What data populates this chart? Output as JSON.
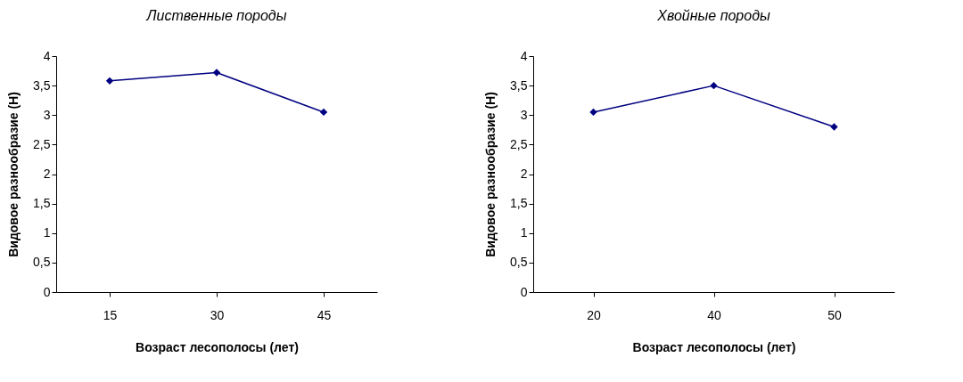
{
  "chart_data": [
    {
      "type": "line",
      "title": "Лиственные породы",
      "xlabel": "Возраст лесополосы (лет)",
      "ylabel": "Видовое разнообразие (Н)",
      "categories": [
        "15",
        "30",
        "45"
      ],
      "series": [
        {
          "color": "#000080",
          "values": [
            3.58,
            3.72,
            3.05
          ]
        }
      ],
      "ylim": [
        0,
        4
      ],
      "yticks": [
        0,
        {
          "value": 0.5,
          "label": "0,5"
        },
        1,
        {
          "value": 1.5,
          "label": "1,5"
        },
        2,
        {
          "value": 2.5,
          "label": "2,5"
        },
        3,
        {
          "value": 3.5,
          "label": "3,5"
        },
        4
      ],
      "marker": "diamond",
      "grid": false
    },
    {
      "type": "line",
      "title": "Хвойные породы",
      "xlabel": "Возраст лесополосы (лет)",
      "ylabel": "Видовое разнообразие (Н)",
      "categories": [
        "20",
        "40",
        "50"
      ],
      "series": [
        {
          "color": "#000080",
          "values": [
            3.05,
            3.5,
            2.8
          ]
        }
      ],
      "ylim": [
        0,
        4
      ],
      "yticks": [
        0,
        {
          "value": 0.5,
          "label": "0,5"
        },
        1,
        {
          "value": 1.5,
          "label": "1,5"
        },
        2,
        {
          "value": 2.5,
          "label": "2,5"
        },
        3,
        {
          "value": 3.5,
          "label": "3,5"
        },
        4
      ],
      "marker": "diamond",
      "grid": false
    }
  ]
}
